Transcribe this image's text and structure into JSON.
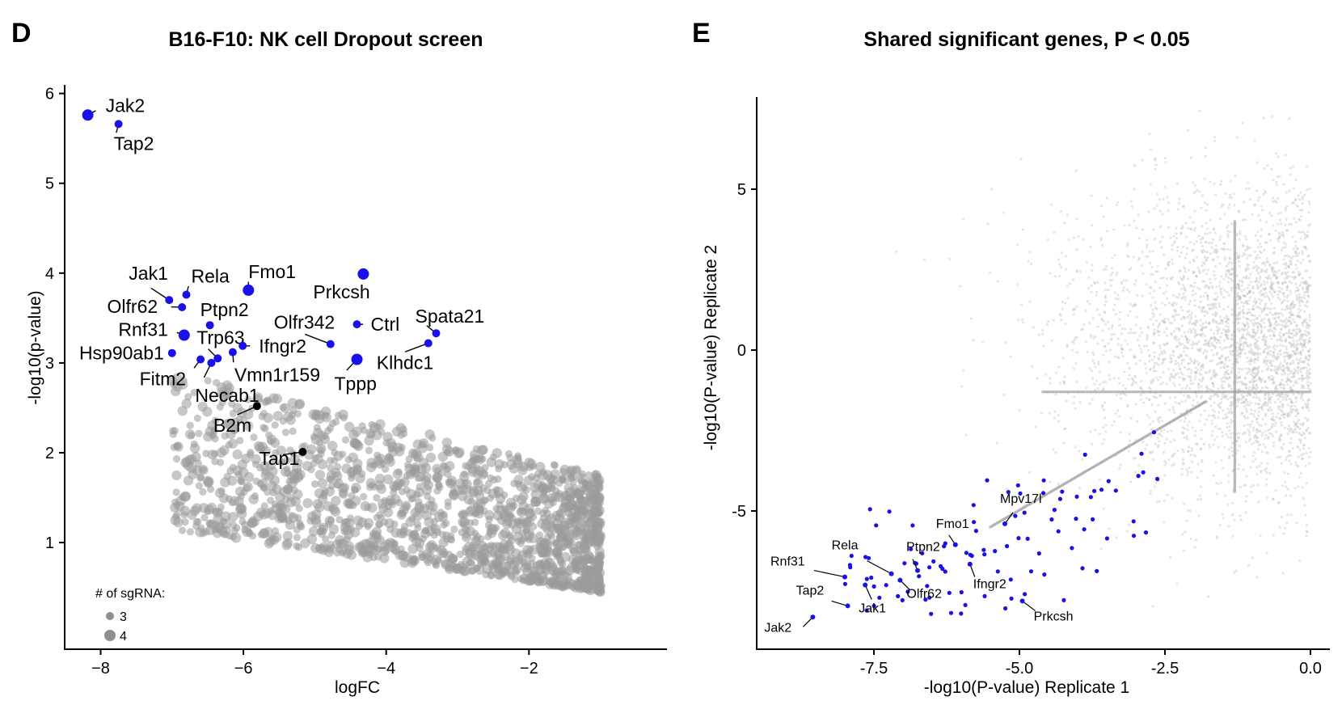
{
  "colors": {
    "significant": "#1a10e8",
    "highlight": "#000000",
    "background_points": "#9b9b9b",
    "cloud_points": "#b8b8b8"
  },
  "panels": {
    "d": {
      "letter": "D"
    },
    "e": {
      "letter": "E"
    }
  },
  "chart_data": [
    {
      "type": "scatter",
      "panel": "D",
      "title": "B16-F10: NK cell Dropout screen",
      "xlabel": "logFC",
      "ylabel": "-log10(p-value)",
      "xlim": [
        -8.5,
        -0.5
      ],
      "ylim": [
        0,
        6.1
      ],
      "xticks": [
        -8,
        -6,
        -4,
        -2
      ],
      "yticks": [
        1,
        2,
        3,
        4,
        5,
        6
      ],
      "grid": false,
      "legend": {
        "title": "# of sgRNA:",
        "position": "bottom-left",
        "entries": [
          {
            "label": "3",
            "sgrna": 3
          },
          {
            "label": "4",
            "sgrna": 4
          }
        ]
      },
      "points_labeled": [
        {
          "label": "Jak2",
          "x": -8.18,
          "y": 5.76,
          "sgrna": 4,
          "group": "significant"
        },
        {
          "label": "Tap2",
          "x": -7.75,
          "y": 5.66,
          "sgrna": 3,
          "group": "significant"
        },
        {
          "label": "Jak1",
          "x": -7.04,
          "y": 3.7,
          "sgrna": 3,
          "group": "significant"
        },
        {
          "label": "Rela",
          "x": -6.8,
          "y": 3.76,
          "sgrna": 3,
          "group": "significant"
        },
        {
          "label": "Olfr62",
          "x": -6.86,
          "y": 3.62,
          "sgrna": 3,
          "group": "significant"
        },
        {
          "label": "Fmo1",
          "x": -5.93,
          "y": 3.81,
          "sgrna": 4,
          "group": "significant"
        },
        {
          "label": "Prkcsh",
          "x": -4.32,
          "y": 3.99,
          "sgrna": 4,
          "group": "significant"
        },
        {
          "label": "Ptpn2",
          "x": -6.47,
          "y": 3.42,
          "sgrna": 3,
          "group": "significant"
        },
        {
          "label": "Ctrl",
          "x": -4.41,
          "y": 3.43,
          "sgrna": 3,
          "group": "significant"
        },
        {
          "label": "Spata21",
          "x": -3.3,
          "y": 3.33,
          "sgrna": 3,
          "group": "significant"
        },
        {
          "label": "Rnf31",
          "x": -6.83,
          "y": 3.31,
          "sgrna": 4,
          "group": "significant"
        },
        {
          "label": "Olfr342",
          "x": -4.78,
          "y": 3.21,
          "sgrna": 3,
          "group": "significant"
        },
        {
          "label": "Klhdc1",
          "x": -3.41,
          "y": 3.22,
          "sgrna": 3,
          "group": "significant"
        },
        {
          "label": "Trp63",
          "x": -6.36,
          "y": 3.05,
          "sgrna": 3,
          "group": "significant"
        },
        {
          "label": "Ifngr2",
          "x": -6.01,
          "y": 3.19,
          "sgrna": 3,
          "group": "significant"
        },
        {
          "label": "Hsp90ab1",
          "x": -7.0,
          "y": 3.11,
          "sgrna": 3,
          "group": "significant"
        },
        {
          "label": "Vmn1r159",
          "x": -6.15,
          "y": 3.12,
          "sgrna": 3,
          "group": "significant"
        },
        {
          "label": "Tppp",
          "x": -4.41,
          "y": 3.04,
          "sgrna": 4,
          "group": "significant"
        },
        {
          "label": "Fitm2",
          "x": -6.6,
          "y": 3.04,
          "sgrna": 3,
          "group": "significant"
        },
        {
          "label": "Necab1",
          "x": -6.45,
          "y": 3.0,
          "sgrna": 3,
          "group": "significant"
        },
        {
          "label": "B2m",
          "x": -5.81,
          "y": 2.52,
          "sgrna": 3,
          "group": "highlight"
        },
        {
          "label": "Tap1",
          "x": -5.17,
          "y": 2.01,
          "sgrna": 3,
          "group": "highlight"
        }
      ],
      "background_series": {
        "name": "",
        "description_bounds": {
          "x_min": -7.0,
          "x_max": -1.0,
          "y_min_at_x_min": 2.6,
          "y_at_x_max": 0.5
        }
      }
    },
    {
      "type": "scatter",
      "panel": "E",
      "title": "Shared significant genes, P < 0.05",
      "xlabel": "-log10(P-value) Replicate 1",
      "ylabel": "-log10(P-value) Replicate 2",
      "xlim": [
        -9.3,
        0.4
      ],
      "ylim": [
        -9.3,
        8.0
      ],
      "xticks": [
        -7.5,
        -5.0,
        -2.5,
        0.0
      ],
      "xtick_labels": [
        "-7.5",
        "-5.0",
        "-2.5",
        "0.0"
      ],
      "yticks": [
        -5,
        0,
        5
      ],
      "ytick_labels": [
        "-5",
        "0",
        "5"
      ],
      "grid": false,
      "points_labeled": [
        {
          "label": "Jak2",
          "x": -8.55,
          "y": -8.3
        },
        {
          "label": "Tap2",
          "x": -7.95,
          "y": -7.95
        },
        {
          "label": "Rnf31",
          "x": -8.0,
          "y": -7.05
        },
        {
          "label": "Jak1",
          "x": -7.65,
          "y": -7.3
        },
        {
          "label": "Rela",
          "x": -7.2,
          "y": -6.95
        },
        {
          "label": "Olfr62",
          "x": -7.05,
          "y": -7.15
        },
        {
          "label": "Ptpn2",
          "x": -6.75,
          "y": -6.85
        },
        {
          "label": "Fmo1",
          "x": -6.1,
          "y": -6.05
        },
        {
          "label": "Ifngr2",
          "x": -5.85,
          "y": -6.65
        },
        {
          "label": "Mpv17l",
          "x": -5.25,
          "y": -5.4
        },
        {
          "label": "Prkcsh",
          "x": -4.95,
          "y": -7.8
        }
      ],
      "cloud_structure": {
        "diagonal_line": {
          "from": [
            -5.5,
            -5.5
          ],
          "to": [
            -1.8,
            -1.6
          ]
        },
        "vertical_line_x": -1.3,
        "vertical_line_y_range": [
          -4.4,
          4.0
        ],
        "horizontal_line_y": -1.3,
        "horizontal_line_x_range": [
          -4.6,
          0.0
        ]
      }
    }
  ]
}
